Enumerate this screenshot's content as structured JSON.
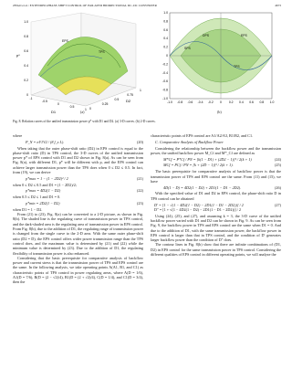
{
  "header": {
    "left": "ZHAO et al.: EXTENDED-PHASE-SHIFT CONTROL OF ISOLATED BIDIRECTIONAL DC–DC CONVERTER",
    "right": "4673"
  },
  "figure": {
    "panel_a": {
      "z_ticks": [
        "0",
        "0.2",
        "0.4",
        "0.6",
        "0.8",
        "1.0"
      ],
      "d1_ticks": [
        "-1",
        "-0.5",
        "0",
        "0.5",
        "1"
      ],
      "d2_ticks": [
        "0",
        "0.25",
        "0.5",
        "0.75",
        "1"
      ],
      "z_label": "p*",
      "d1_label": "D1",
      "d2_label": "D2",
      "labels": [
        "TPS",
        "EPS"
      ],
      "tag": "(a)"
    },
    "panel_b": {
      "x_ticks": [
        "-1.0",
        "-0.8",
        "-0.6",
        "-0.4",
        "-0.2",
        "0",
        "0.2",
        "0.4",
        "0.6",
        "0.8",
        "1.0"
      ],
      "y_ticks": [
        "1.0",
        "0.8",
        "0.6",
        "0.4",
        "0.2",
        "0",
        "-0.2",
        "-0.4",
        "-0.6",
        "-0.8",
        "-1.0"
      ],
      "labels": [
        "DPS",
        "SPS",
        "TPS",
        "EPS"
      ],
      "tag": "(b)"
    },
    "caption": "Fig. 8.   Relation curves of the unified transmission power p* with D1 and D2. (a) 3-D curves. (b) 2-D curves."
  },
  "left_column": {
    "where": "where",
    "eq20": {
      "text": "P_N = nV1V2 / (8 f_s L).",
      "number": "(20)"
    },
    "p1": "When taking that the outer phase-shift ratio (D2) in EPS control is equal to the phase-shift ratio (D) in TPS control, the 3-D curves of the unified transmission power p* of EPS control with D1 and D2 shown in Fig. 8(a). As can be seen from Fig. 8(a), with different D1, p* will be different with p, and the EPS control can achieve larger transmission power than the TPS does when 0 ≤ D2 ≤ 0.5. In fact, from (19), we can derive",
    "eq21": {
      "text": "p*max = 1 − (1 − 2D2)² / 2",
      "number": "(21)"
    },
    "c21": "when 0 ≤ D2 ≤ 0.5 and D1 = (1 − 2D2)/2;",
    "eq22": {
      "text": "p*max = 4D2(1 − D2)",
      "number": "(22)"
    },
    "c22": "when 0.5 ≤ D2 ≤ 1 and D1 = 0.",
    "eq23": {
      "text": "p*min = 2D2(1 − D2)",
      "number": "(23)"
    },
    "c23": "when D1 = 1 − D2.",
    "p2": "From (21) to (23), Fig. 8(a) can be converted to a 2-D picture, as shown in Fig. 8(b). The shaded line is the regulating curve of transmission power in TPS control, and the dark-shaded area is the regulating area of transmission power in EPS control. From Fig. 8(b), due to the addition of D1, the regulating range of transmission power is changed from the single curve to the 2-D area. With the same outer phase-shift ratio (D2 = D), the EPS control offers wider power transmission range than the TPS control does, and the maximum value is determined by (21) and (22) while the minimum value is determined by (23). Due to the addition of D1, the regulating flexibility of transmission power is also enhanced.",
    "p3": "Considering that the basic prerequisite for comparative analysis of backflow power and current stress is that the transmission power of TPS and EPS control are the same. In the following analysis, we take operating points A(A1, B1, and C1) as characteristic points of TPS control in power regulating areas, where A(D = 1/6), A1(D = 7/6), B(D = (2 − √2)/4), B1(D = (2 + √2)/4), C(D = 1/4), and C1(D = 3/4), then the"
  },
  "right_column": {
    "p0": "characteristic points of EPS control are A1/A2/A3, B1/B2, and C1.",
    "heading": "C.  Comparative Analysis of Backflow Power",
    "p1": "Considering the relationship between the backflow power and the transmission power, the unified backflow power M_Cf and M*_Cf are defined as",
    "eq24": {
      "text": "M*Cf = P*Cf / PN = [k(1 − D1) + (2D2 − 1)]² / 2(k + 1)",
      "number": "(24)"
    },
    "eq25": {
      "text": "MCf = PCf / PN = [k + (2D − 1)]² / 2(k + 1).",
      "number": "(25)"
    },
    "p2": "The basic prerequisite for comparative analysis of backflow power is that the transmission power of TPS and EPS control are the same. From (11) and (15), we have",
    "eq26": {
      "text": "4D(1 − D) = 4D2(1 − D2) + 2D1(1 − D1 − 2D2).",
      "number": "(26)"
    },
    "p3": "With the specified value of D1 and D2 in EPS control, the phase-shift ratio D in TPS control can be obtained",
    "eq27a": "D′ = [1 − √(1 − 4D2(1 − D2) − 2D1(1 − D1 − 2D2))] / 2",
    "eq27b": "D″ = [1 + √(1 − 4D2(1 − D2) − 2D1(1 − D1 − 2D2))] / 2",
    "eq27n": "(27)",
    "p4": "Using (24), (25), and (27), and assuming k = 3, the 3-D curve of the unified backflow power varied with D1 and D2 can be shown in Fig. 9. As can be seen from Fig. 9, the backflow power in TPS and EPS control are the same when D1 = 0. And due to the addition of D1, with the same transmission power, the backflow power in EPS control is larger than that in TPS control, and the condition of D′ generates larger backflow power than the condition of D″ does.",
    "p5": "The contour lines in Fig. 8(b) show that there are infinite combinations of (D1, D2) in EPS control for the same transmission power in TPS control. Considering the different qualities of EPS control in different operating points, we will analyze the"
  }
}
